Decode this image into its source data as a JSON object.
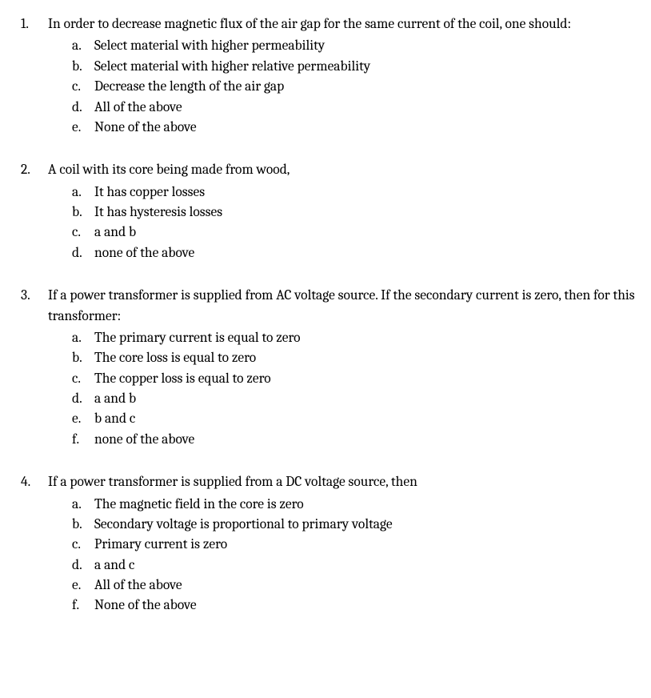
{
  "questions": [
    {
      "stem": "In order to decrease magnetic flux of the air gap for the same current of the coil, one should:",
      "options": [
        "Select material with higher permeability",
        "Select material with higher relative permeability",
        "Decrease the length of the air gap",
        "All of the above",
        "None of the above"
      ]
    },
    {
      "stem": "A coil with its core being made from wood,",
      "options": [
        "It has copper losses",
        "It has hysteresis losses",
        "a and b",
        "none of the above"
      ]
    },
    {
      "stem": "If a power transformer is supplied from AC voltage source. If the secondary current is zero, then for this transformer:",
      "options": [
        "The primary current is equal to zero",
        "The core loss is equal to zero",
        "The copper loss is equal to zero",
        "a and b",
        "b and c",
        "none of the above"
      ]
    },
    {
      "stem": "If a power transformer is supplied from a DC voltage source, then",
      "options": [
        "The magnetic field in the core is zero",
        "Secondary voltage is proportional to primary voltage",
        "Primary current is zero",
        "a and c",
        "All of the above",
        "None of the above"
      ]
    }
  ]
}
